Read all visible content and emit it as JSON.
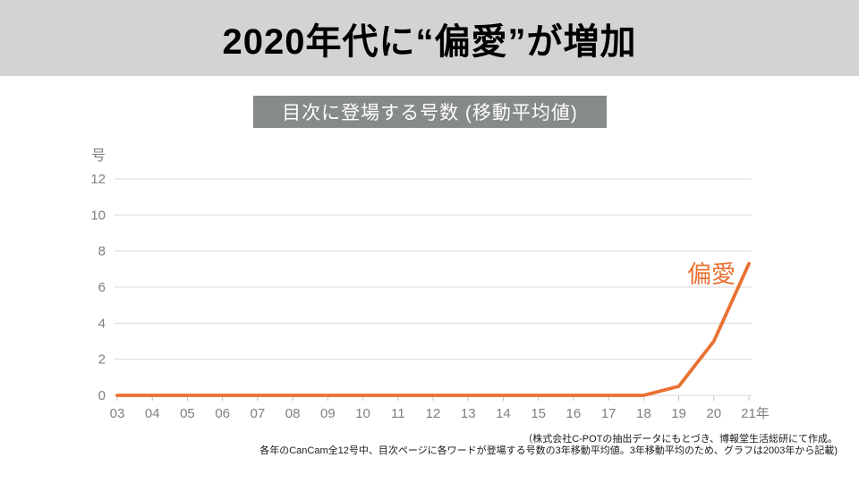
{
  "title": "2020年代に“偏愛”が増加",
  "subtitle": "目次に登場する号数 (移動平均値)",
  "footnote": {
    "line1": "（株式会社C-POTの抽出データにもとづき、博報堂生活総研にて作成。",
    "line2": "各年のCanCam全12号中、目次ページに各ワードが登場する号数の3年移動平均値。3年移動平均のため、グラフは2003年から記載)"
  },
  "colors": {
    "banner_bg": "#D2D4D4",
    "subtitle_bg": "#868A8B",
    "line_orange": "#E97132",
    "axis_text": "#7F7F7F",
    "gridline": "#D9D9D9",
    "tick_mark": "#BFBFBF",
    "title_text": "#000000",
    "subtitle_text": "#FFFFFF"
  },
  "chart_data": {
    "type": "line",
    "title": "目次に登場する号数 (移動平均値)",
    "xlabel": "",
    "ylabel": "号",
    "unit_label": "号",
    "x_suffix_last": "年",
    "categories": [
      "03",
      "04",
      "05",
      "06",
      "07",
      "08",
      "09",
      "10",
      "11",
      "12",
      "13",
      "14",
      "15",
      "16",
      "17",
      "18",
      "19",
      "20",
      "21"
    ],
    "series": [
      {
        "name": "偏愛",
        "color": "#E97132",
        "values": [
          0,
          0,
          0,
          0,
          0,
          0,
          0,
          0,
          0,
          0,
          0,
          0,
          0,
          0,
          0,
          0,
          0.5,
          3.0,
          7.3
        ]
      }
    ],
    "ylim": [
      0,
      12
    ],
    "yticks": [
      0,
      2,
      4,
      6,
      8,
      10,
      12
    ],
    "grid": true,
    "legend_position": "annotation near line end",
    "annotation_text": "偏愛"
  }
}
